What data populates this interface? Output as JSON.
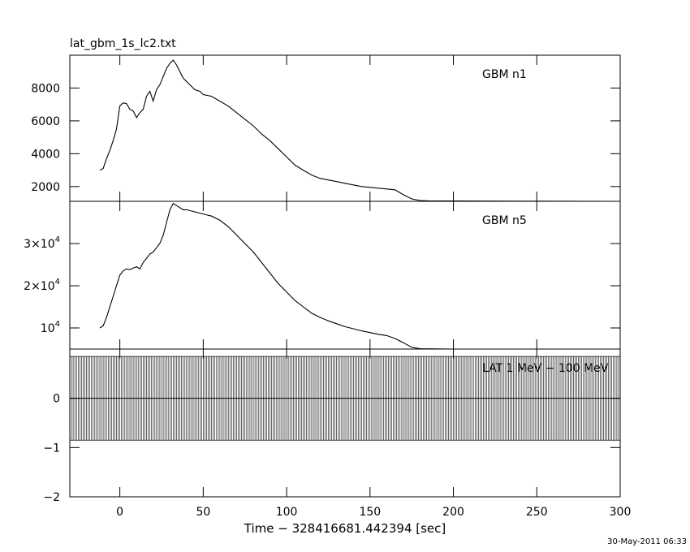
{
  "file_title": "lat_gbm_1s_lc2.txt",
  "footer_date": "30-May-2011 06:33",
  "chart_data": {
    "type": "line",
    "xlabel": "Time − 328416681.442394 [sec]",
    "xlim": [
      -30,
      300
    ],
    "xticks": [
      0,
      50,
      100,
      150,
      200,
      250,
      300
    ],
    "panels": [
      {
        "id": "n1",
        "label": "GBM n1",
        "ylim": [
          1100,
          10000
        ],
        "yticks": [
          {
            "v": 2000,
            "mant": "2000",
            "exp": ""
          },
          {
            "v": 4000,
            "mant": "4000",
            "exp": ""
          },
          {
            "v": 6000,
            "mant": "6000",
            "exp": ""
          },
          {
            "v": 8000,
            "mant": "8000",
            "exp": ""
          }
        ],
        "points": [
          [
            -12,
            3000
          ],
          [
            -10,
            3100
          ],
          [
            -8,
            3700
          ],
          [
            -6,
            4200
          ],
          [
            -4,
            4800
          ],
          [
            -2,
            5500
          ],
          [
            0,
            6900
          ],
          [
            2,
            7100
          ],
          [
            4,
            7050
          ],
          [
            6,
            6700
          ],
          [
            8,
            6600
          ],
          [
            10,
            6200
          ],
          [
            12,
            6500
          ],
          [
            14,
            6700
          ],
          [
            16,
            7500
          ],
          [
            18,
            7800
          ],
          [
            20,
            7200
          ],
          [
            22,
            7900
          ],
          [
            24,
            8200
          ],
          [
            26,
            8700
          ],
          [
            28,
            9200
          ],
          [
            30,
            9500
          ],
          [
            32,
            9700
          ],
          [
            34,
            9400
          ],
          [
            36,
            9000
          ],
          [
            38,
            8600
          ],
          [
            40,
            8400
          ],
          [
            42,
            8200
          ],
          [
            45,
            7900
          ],
          [
            48,
            7800
          ],
          [
            50,
            7600
          ],
          [
            55,
            7500
          ],
          [
            60,
            7200
          ],
          [
            65,
            6900
          ],
          [
            70,
            6500
          ],
          [
            75,
            6100
          ],
          [
            80,
            5700
          ],
          [
            85,
            5200
          ],
          [
            90,
            4800
          ],
          [
            95,
            4300
          ],
          [
            100,
            3800
          ],
          [
            105,
            3300
          ],
          [
            110,
            3000
          ],
          [
            115,
            2700
          ],
          [
            120,
            2500
          ],
          [
            125,
            2400
          ],
          [
            130,
            2300
          ],
          [
            135,
            2200
          ],
          [
            140,
            2100
          ],
          [
            145,
            2000
          ],
          [
            150,
            1950
          ],
          [
            155,
            1900
          ],
          [
            160,
            1850
          ],
          [
            165,
            1800
          ],
          [
            170,
            1500
          ],
          [
            175,
            1250
          ],
          [
            180,
            1150
          ],
          [
            185,
            1130
          ],
          [
            200,
            1120
          ],
          [
            250,
            1110
          ],
          [
            300,
            1100
          ]
        ]
      },
      {
        "id": "n5",
        "label": "GBM n5",
        "ylim": [
          5000,
          40000
        ],
        "yticks": [
          {
            "v": 10000,
            "mant": "10",
            "exp": "4"
          },
          {
            "v": 20000,
            "mant": "2×10",
            "exp": "4"
          },
          {
            "v": 30000,
            "mant": "3×10",
            "exp": "4"
          }
        ],
        "points": [
          [
            -12,
            10000
          ],
          [
            -10,
            10500
          ],
          [
            -8,
            12500
          ],
          [
            -6,
            15000
          ],
          [
            -4,
            17500
          ],
          [
            -2,
            20000
          ],
          [
            0,
            22500
          ],
          [
            2,
            23500
          ],
          [
            4,
            24000
          ],
          [
            6,
            23800
          ],
          [
            8,
            24200
          ],
          [
            10,
            24500
          ],
          [
            12,
            24000
          ],
          [
            14,
            25500
          ],
          [
            16,
            26500
          ],
          [
            18,
            27500
          ],
          [
            20,
            28000
          ],
          [
            22,
            29000
          ],
          [
            24,
            30000
          ],
          [
            26,
            32000
          ],
          [
            28,
            35000
          ],
          [
            30,
            38000
          ],
          [
            32,
            39500
          ],
          [
            34,
            39000
          ],
          [
            36,
            38500
          ],
          [
            38,
            38000
          ],
          [
            40,
            38000
          ],
          [
            45,
            37500
          ],
          [
            50,
            37000
          ],
          [
            55,
            36500
          ],
          [
            60,
            35500
          ],
          [
            65,
            34000
          ],
          [
            70,
            32000
          ],
          [
            75,
            30000
          ],
          [
            80,
            28000
          ],
          [
            85,
            25500
          ],
          [
            90,
            23000
          ],
          [
            95,
            20500
          ],
          [
            100,
            18500
          ],
          [
            105,
            16500
          ],
          [
            110,
            15000
          ],
          [
            115,
            13500
          ],
          [
            120,
            12500
          ],
          [
            125,
            11700
          ],
          [
            130,
            11000
          ],
          [
            135,
            10300
          ],
          [
            140,
            9800
          ],
          [
            145,
            9300
          ],
          [
            150,
            8900
          ],
          [
            155,
            8500
          ],
          [
            160,
            8200
          ],
          [
            165,
            7500
          ],
          [
            170,
            6500
          ],
          [
            175,
            5400
          ],
          [
            180,
            5100
          ],
          [
            200,
            5000
          ],
          [
            250,
            5000
          ],
          [
            300,
            5000
          ]
        ]
      },
      {
        "id": "lat",
        "label": "LAT 1 MeV − 100 MeV",
        "ylim": [
          -2,
          1
        ],
        "yticks": [
          {
            "v": -2,
            "mant": "−2",
            "exp": ""
          },
          {
            "v": -1,
            "mant": "−1",
            "exp": ""
          },
          {
            "v": 0,
            "mant": "0",
            "exp": ""
          }
        ],
        "zero_line": 0,
        "error_bars": {
          "x_start": -30,
          "x_end": 300,
          "step": 1,
          "center": 0,
          "half_range": 0.85
        }
      }
    ]
  }
}
